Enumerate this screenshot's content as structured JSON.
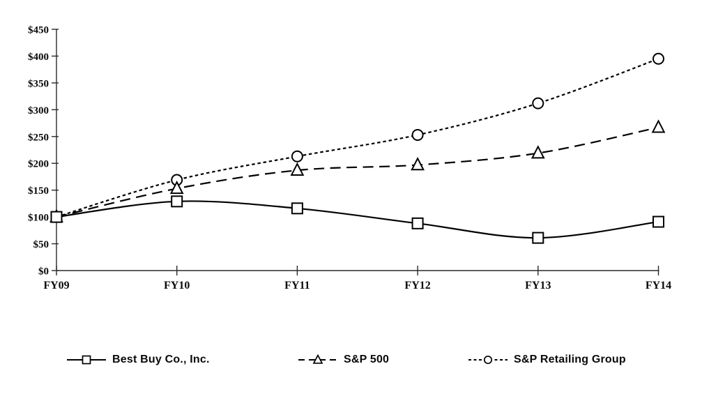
{
  "chart_data": {
    "type": "line",
    "title": "",
    "xlabel": "",
    "ylabel": "",
    "categories": [
      "FY09",
      "FY10",
      "FY11",
      "FY12",
      "FY13",
      "FY14"
    ],
    "series": [
      {
        "name": "Best Buy Co., Inc.",
        "marker": "square",
        "line_style": "solid",
        "values": [
          100,
          129,
          116,
          88,
          61,
          91
        ]
      },
      {
        "name": "S&P 500",
        "marker": "triangle",
        "line_style": "long-dash",
        "values": [
          100,
          153,
          187,
          197,
          219,
          267
        ]
      },
      {
        "name": "S&P Retailing Group",
        "marker": "circle",
        "line_style": "short-dash",
        "values": [
          100,
          169,
          213,
          253,
          312,
          395
        ]
      }
    ],
    "ylim": [
      0,
      450
    ],
    "ytick_step": 50,
    "y_tick_labels": [
      "$0",
      "$50",
      "$100",
      "$150",
      "$200",
      "$250",
      "$300",
      "$350",
      "$400",
      "$450"
    ],
    "value_prefix": "$",
    "grid": "off",
    "legend_position": "bottom",
    "line_color": "#000000",
    "axis_color": "#2a2a2a",
    "marker_fill": "#ffffff",
    "background": "#ffffff"
  }
}
